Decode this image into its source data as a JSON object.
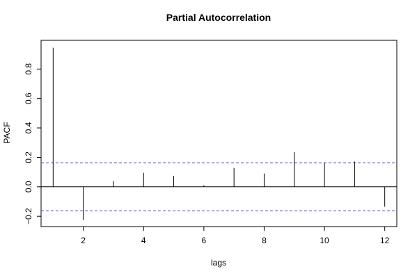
{
  "chart_data": {
    "type": "bar",
    "title": "Partial Autocorrelation",
    "xlabel": "lags",
    "ylabel": "PACF",
    "x": [
      1,
      2,
      3,
      4,
      5,
      6,
      7,
      8,
      9,
      10,
      11,
      12
    ],
    "values": [
      0.945,
      -0.225,
      0.04,
      0.095,
      0.075,
      0.01,
      0.128,
      0.09,
      0.235,
      0.165,
      0.172,
      -0.135
    ],
    "xlim": [
      0.6,
      12.4
    ],
    "ylim": [
      -0.27,
      0.995
    ],
    "xticks": [
      2,
      4,
      6,
      8,
      10,
      12
    ],
    "yticks": [
      -0.2,
      0.0,
      0.2,
      0.4,
      0.6,
      0.8
    ],
    "ytick_labels": [
      "−0.2",
      "0.0",
      "0.2",
      "0.4",
      "0.6",
      "0.8"
    ],
    "confidence_bounds": [
      0.163,
      -0.163
    ],
    "grid": false,
    "colors": {
      "spike": "#000000",
      "confidence": "#3333ee",
      "frame": "#000000"
    }
  }
}
